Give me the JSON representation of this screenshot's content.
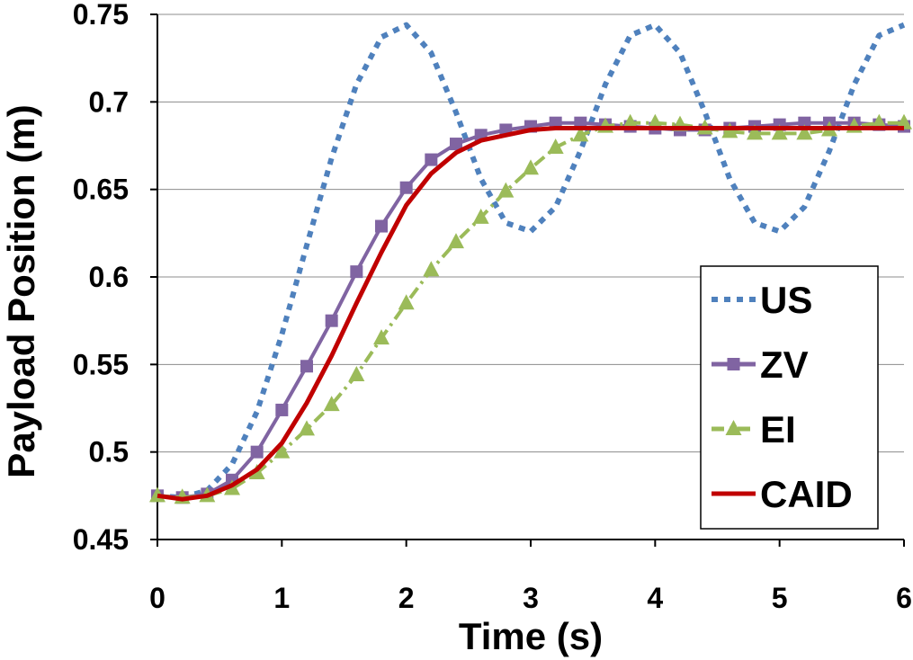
{
  "chart_data": {
    "type": "line",
    "title": "",
    "xlabel": "Time (s)",
    "ylabel": "Payload Position (m)",
    "xlim": [
      0,
      6
    ],
    "ylim": [
      0.45,
      0.75
    ],
    "xticks": [
      0,
      1,
      2,
      3,
      4,
      5,
      6
    ],
    "xtick_labels": [
      "0",
      "1",
      "2",
      "3",
      "4",
      "5",
      "6"
    ],
    "yticks": [
      0.45,
      0.5,
      0.55,
      0.6,
      0.65,
      0.7,
      0.75
    ],
    "ytick_labels": [
      "0.45",
      "0.5",
      "0.55",
      "0.6",
      "0.65",
      "0.7",
      "0.75"
    ],
    "grid": "horizontal",
    "legend_position": "right",
    "x": [
      0,
      0.2,
      0.4,
      0.6,
      0.8,
      1.0,
      1.2,
      1.4,
      1.6,
      1.8,
      2.0,
      2.2,
      2.4,
      2.6,
      2.8,
      3.0,
      3.2,
      3.4,
      3.6,
      3.8,
      4.0,
      4.2,
      4.4,
      4.6,
      4.8,
      5.0,
      5.2,
      5.4,
      5.6,
      5.8,
      6.0
    ],
    "series": [
      {
        "name": "US",
        "color": "#4F81BD",
        "style": "dotted",
        "marker": "none",
        "values": [
          0.475,
          0.474,
          0.478,
          0.493,
          0.523,
          0.567,
          0.618,
          0.668,
          0.71,
          0.737,
          0.744,
          0.728,
          0.694,
          0.656,
          0.631,
          0.626,
          0.64,
          0.672,
          0.71,
          0.738,
          0.744,
          0.728,
          0.694,
          0.656,
          0.631,
          0.626,
          0.64,
          0.672,
          0.71,
          0.738,
          0.744
        ]
      },
      {
        "name": "ZV",
        "color": "#8064A2",
        "style": "solid",
        "marker": "square",
        "values": [
          0.475,
          0.474,
          0.476,
          0.484,
          0.5,
          0.524,
          0.549,
          0.575,
          0.603,
          0.629,
          0.651,
          0.667,
          0.676,
          0.681,
          0.684,
          0.686,
          0.688,
          0.688,
          0.687,
          0.686,
          0.685,
          0.684,
          0.684,
          0.685,
          0.686,
          0.687,
          0.688,
          0.688,
          0.688,
          0.687,
          0.686
        ]
      },
      {
        "name": "EI",
        "color": "#9BBB59",
        "style": "dashdot",
        "marker": "triangle",
        "values": [
          0.475,
          0.474,
          0.475,
          0.479,
          0.488,
          0.5,
          0.513,
          0.527,
          0.544,
          0.565,
          0.585,
          0.604,
          0.62,
          0.634,
          0.649,
          0.662,
          0.674,
          0.681,
          0.686,
          0.688,
          0.688,
          0.687,
          0.685,
          0.683,
          0.682,
          0.682,
          0.682,
          0.684,
          0.686,
          0.688,
          0.688
        ]
      },
      {
        "name": "CAID",
        "color": "#C00000",
        "style": "solid",
        "marker": "none",
        "values": [
          0.475,
          0.473,
          0.475,
          0.481,
          0.49,
          0.505,
          0.528,
          0.555,
          0.585,
          0.614,
          0.641,
          0.659,
          0.671,
          0.678,
          0.681,
          0.684,
          0.685,
          0.685,
          0.685,
          0.685,
          0.685,
          0.685,
          0.685,
          0.685,
          0.685,
          0.685,
          0.685,
          0.685,
          0.685,
          0.685,
          0.685
        ]
      }
    ]
  }
}
